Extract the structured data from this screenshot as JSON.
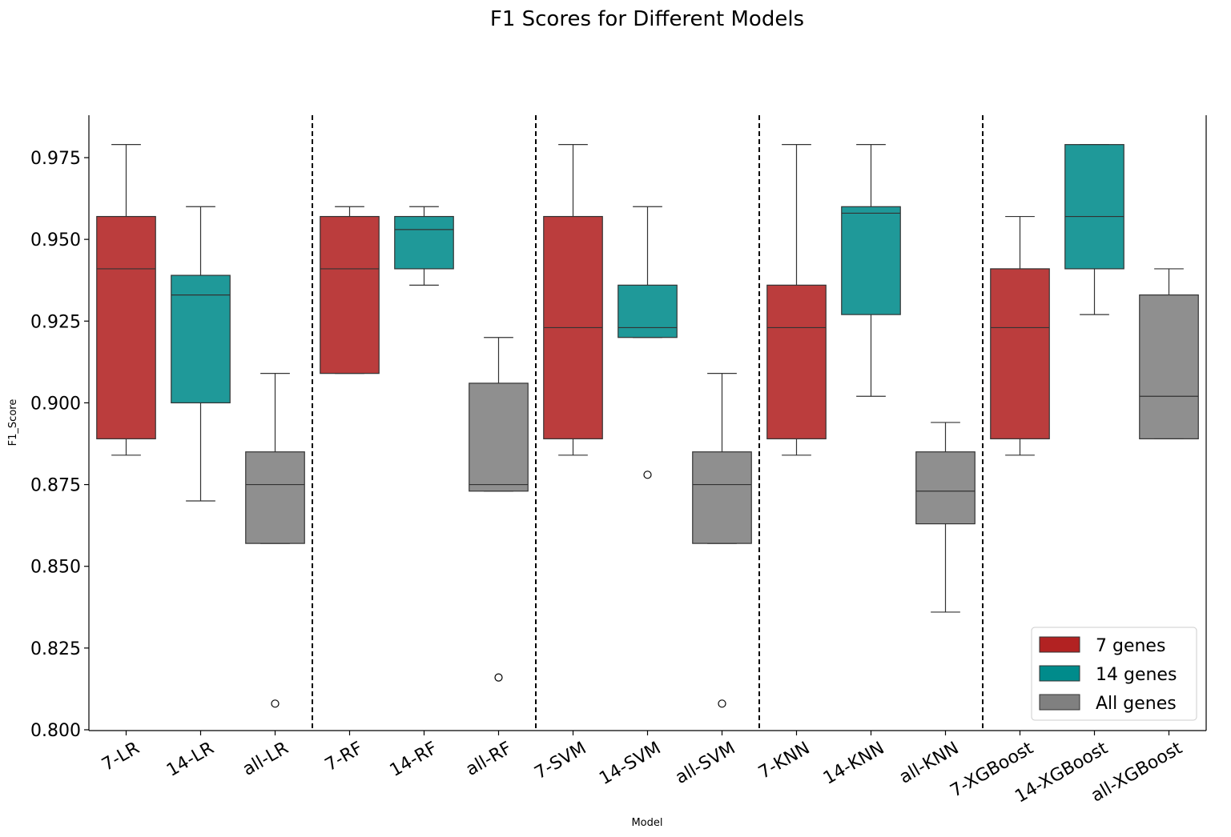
{
  "chart_data": {
    "type": "box",
    "title": "F1 Scores for Different Models",
    "xlabel": "Model",
    "ylabel": "F1_Score",
    "ylim": [
      0.8,
      0.988
    ],
    "yticks": [
      0.8,
      0.825,
      0.85,
      0.875,
      0.9,
      0.925,
      0.95,
      0.975
    ],
    "ytick_labels": [
      "0.800",
      "0.825",
      "0.850",
      "0.875",
      "0.900",
      "0.925",
      "0.950",
      "0.975"
    ],
    "categories": [
      "7-LR",
      "14-LR",
      "all-LR",
      "7-RF",
      "14-RF",
      "all-RF",
      "7-SVM",
      "14-SVM",
      "all-SVM",
      "7-KNN",
      "14-KNN",
      "all-KNN",
      "7-XGBoost",
      "14-XGBoost",
      "all-XGBoost"
    ],
    "legend": {
      "position": "lower-right",
      "entries": [
        {
          "label": "7 genes",
          "color": "#b22222"
        },
        {
          "label": "14 genes",
          "color": "#008b8b"
        },
        {
          "label": "All genes",
          "color": "#808080"
        }
      ]
    },
    "group_separators_after": [
      3,
      6,
      9,
      12
    ],
    "boxes": [
      {
        "label": "7-LR",
        "group": 0,
        "whisker_low": 0.884,
        "q1": 0.889,
        "median": 0.941,
        "q3": 0.957,
        "whisker_high": 0.979,
        "outliers": []
      },
      {
        "label": "14-LR",
        "group": 1,
        "whisker_low": 0.87,
        "q1": 0.9,
        "median": 0.933,
        "q3": 0.939,
        "whisker_high": 0.96,
        "outliers": []
      },
      {
        "label": "all-LR",
        "group": 2,
        "whisker_low": 0.857,
        "q1": 0.857,
        "median": 0.875,
        "q3": 0.885,
        "whisker_high": 0.909,
        "outliers": [
          0.808
        ]
      },
      {
        "label": "7-RF",
        "group": 0,
        "whisker_low": 0.909,
        "q1": 0.909,
        "median": 0.941,
        "q3": 0.957,
        "whisker_high": 0.96,
        "outliers": []
      },
      {
        "label": "14-RF",
        "group": 1,
        "whisker_low": 0.936,
        "q1": 0.941,
        "median": 0.953,
        "q3": 0.957,
        "whisker_high": 0.96,
        "outliers": []
      },
      {
        "label": "all-RF",
        "group": 2,
        "whisker_low": 0.873,
        "q1": 0.873,
        "median": 0.875,
        "q3": 0.906,
        "whisker_high": 0.92,
        "outliers": [
          0.816
        ]
      },
      {
        "label": "7-SVM",
        "group": 0,
        "whisker_low": 0.884,
        "q1": 0.889,
        "median": 0.923,
        "q3": 0.957,
        "whisker_high": 0.979,
        "outliers": []
      },
      {
        "label": "14-SVM",
        "group": 1,
        "whisker_low": 0.92,
        "q1": 0.92,
        "median": 0.923,
        "q3": 0.936,
        "whisker_high": 0.96,
        "outliers": [
          0.878
        ]
      },
      {
        "label": "all-SVM",
        "group": 2,
        "whisker_low": 0.857,
        "q1": 0.857,
        "median": 0.875,
        "q3": 0.885,
        "whisker_high": 0.909,
        "outliers": [
          0.808
        ]
      },
      {
        "label": "7-KNN",
        "group": 0,
        "whisker_low": 0.884,
        "q1": 0.889,
        "median": 0.923,
        "q3": 0.936,
        "whisker_high": 0.979,
        "outliers": []
      },
      {
        "label": "14-KNN",
        "group": 1,
        "whisker_low": 0.902,
        "q1": 0.927,
        "median": 0.958,
        "q3": 0.96,
        "whisker_high": 0.979,
        "outliers": []
      },
      {
        "label": "all-KNN",
        "group": 2,
        "whisker_low": 0.836,
        "q1": 0.863,
        "median": 0.873,
        "q3": 0.885,
        "whisker_high": 0.894,
        "outliers": []
      },
      {
        "label": "7-XGBoost",
        "group": 0,
        "whisker_low": 0.884,
        "q1": 0.889,
        "median": 0.923,
        "q3": 0.941,
        "whisker_high": 0.957,
        "outliers": []
      },
      {
        "label": "14-XGBoost",
        "group": 1,
        "whisker_low": 0.927,
        "q1": 0.941,
        "median": 0.957,
        "q3": 0.979,
        "whisker_high": 0.979,
        "outliers": []
      },
      {
        "label": "all-XGBoost",
        "group": 2,
        "whisker_low": 0.889,
        "q1": 0.889,
        "median": 0.902,
        "q3": 0.933,
        "whisker_high": 0.941,
        "outliers": []
      }
    ]
  }
}
